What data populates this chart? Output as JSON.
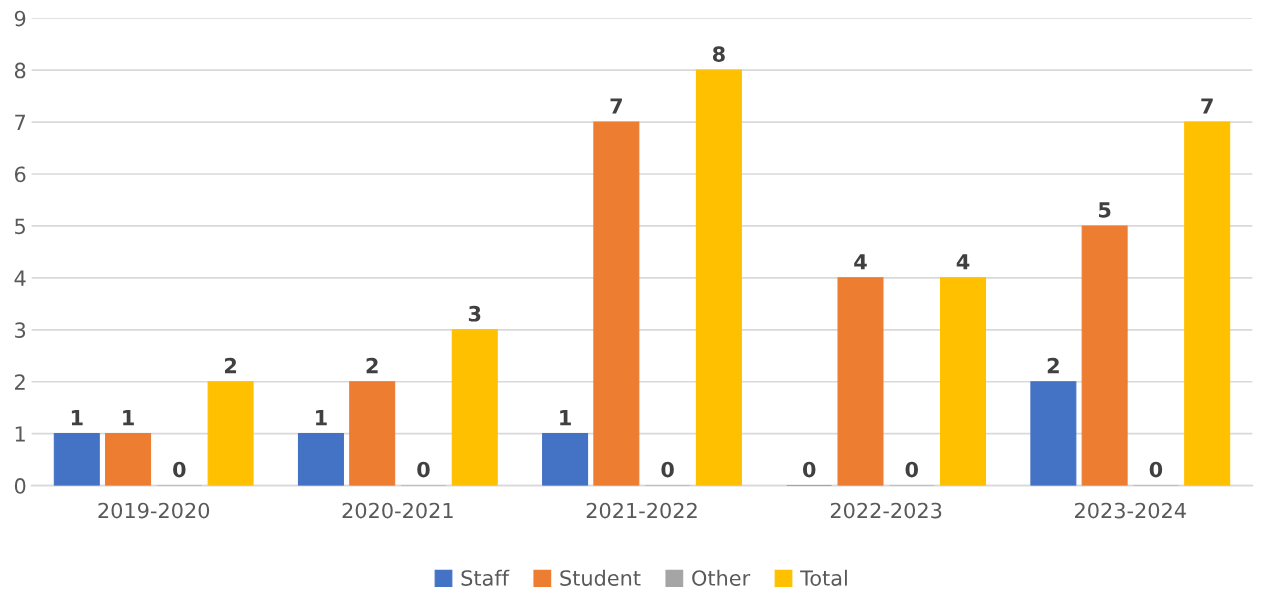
{
  "chart_data": {
    "type": "bar",
    "categories": [
      "2019-2020",
      "2020-2021",
      "2021-2022",
      "2022-2023",
      "2023-2024"
    ],
    "series": [
      {
        "name": "Staff",
        "color": "#4472c4",
        "values": [
          1,
          1,
          1,
          0,
          2
        ]
      },
      {
        "name": "Student",
        "color": "#ed7d31",
        "values": [
          1,
          2,
          7,
          4,
          5
        ]
      },
      {
        "name": "Other",
        "color": "#a5a5a5",
        "values": [
          0,
          0,
          0,
          0,
          0
        ]
      },
      {
        "name": "Total",
        "color": "#ffc000",
        "values": [
          2,
          3,
          8,
          4,
          7
        ]
      }
    ],
    "ylim": [
      0,
      9
    ],
    "yticks": [
      0,
      1,
      2,
      3,
      4,
      5,
      6,
      7,
      8,
      9
    ],
    "grid": "y",
    "legend": "bottom",
    "data_labels": true
  }
}
